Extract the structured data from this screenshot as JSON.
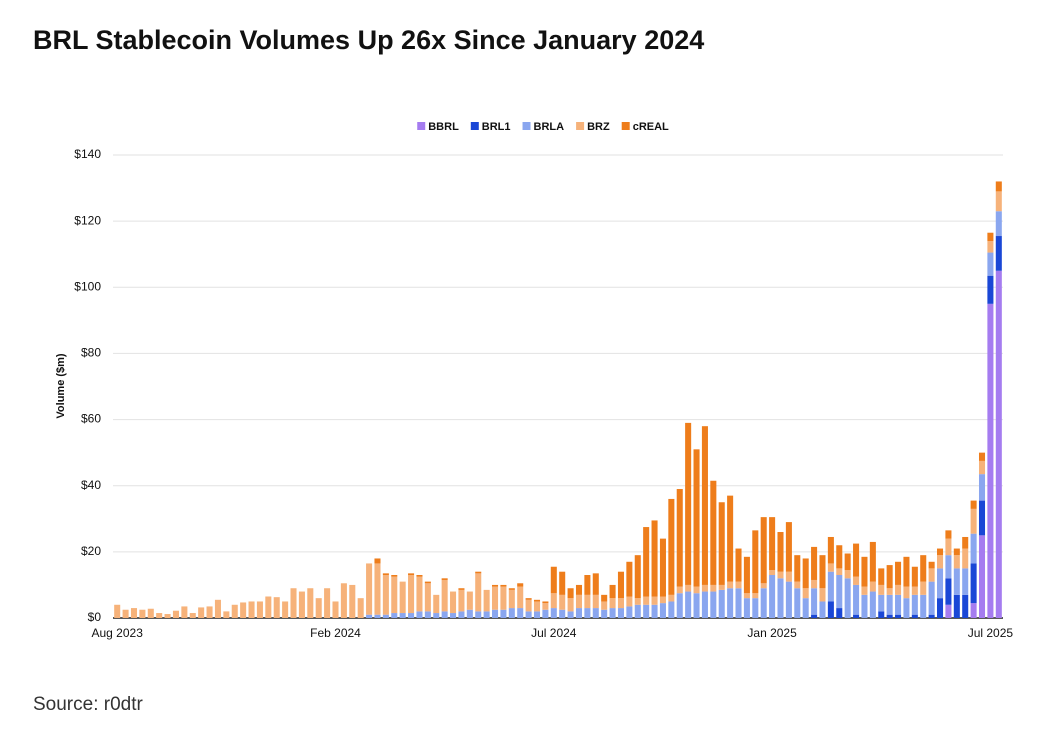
{
  "chart_data": {
    "type": "stacked-bar",
    "title": "BRL Stablecoin Volumes Up 26x Since January 2024",
    "y_label": "Volume ($m)",
    "source": "Source: r0dtr",
    "categories": [
      "Aug 2023",
      null,
      null,
      null,
      null,
      null,
      null,
      null,
      null,
      null,
      null,
      null,
      null,
      null,
      null,
      null,
      null,
      null,
      null,
      null,
      null,
      null,
      null,
      null,
      null,
      null,
      "Feb 2024",
      null,
      null,
      null,
      null,
      null,
      null,
      null,
      null,
      null,
      null,
      null,
      null,
      null,
      null,
      null,
      null,
      null,
      null,
      null,
      null,
      null,
      null,
      null,
      null,
      null,
      "Jul 2024",
      null,
      null,
      null,
      null,
      null,
      null,
      null,
      null,
      null,
      null,
      null,
      null,
      null,
      null,
      null,
      null,
      null,
      null,
      null,
      null,
      null,
      null,
      null,
      null,
      null,
      "Jan 2025",
      null,
      null,
      null,
      null,
      null,
      null,
      null,
      null,
      null,
      null,
      null,
      null,
      null,
      null,
      null,
      null,
      null,
      null,
      null,
      null,
      null,
      null,
      null,
      null,
      null,
      "Jul 2025",
      null
    ],
    "series": [
      {
        "name": "BBRL",
        "color": "#a57cf0",
        "values": [
          0,
          0,
          0,
          0,
          0,
          0,
          0,
          0,
          0,
          0,
          0,
          0,
          0,
          0,
          0,
          0,
          0,
          0,
          0,
          0,
          0,
          0,
          0,
          0,
          0,
          0,
          0,
          0,
          0,
          0,
          0,
          0,
          0,
          0,
          0,
          0,
          0,
          0,
          0,
          0,
          0,
          0,
          0,
          0,
          0,
          0,
          0,
          0,
          0,
          0,
          0,
          0,
          0,
          0,
          0,
          0,
          0,
          0,
          0,
          0,
          0,
          0,
          0,
          0,
          0,
          0,
          0,
          0,
          0,
          0,
          0,
          0,
          0,
          0,
          0,
          0,
          0,
          0,
          0,
          0,
          0,
          0,
          0,
          0,
          0,
          0,
          0,
          0,
          0,
          0,
          0,
          0,
          0,
          0,
          0,
          0,
          0,
          0,
          0,
          4,
          0,
          0,
          4.5,
          25,
          95,
          105
        ]
      },
      {
        "name": "BRL1",
        "color": "#1a47d6",
        "values": [
          0,
          0,
          0,
          0,
          0,
          0,
          0,
          0,
          0,
          0,
          0,
          0,
          0,
          0,
          0,
          0,
          0,
          0,
          0,
          0,
          0,
          0,
          0,
          0,
          0,
          0,
          0,
          0,
          0,
          0,
          0,
          0,
          0,
          0,
          0,
          0,
          0,
          0,
          0,
          0,
          0,
          0,
          0,
          0,
          0,
          0,
          0,
          0,
          0,
          0,
          0,
          0,
          0,
          0,
          0,
          0,
          0,
          0,
          0,
          0,
          0,
          0,
          0,
          0,
          0,
          0,
          0,
          0,
          0,
          0,
          0,
          0,
          0,
          0,
          0,
          0,
          0,
          0,
          0,
          0,
          0,
          0,
          0,
          1,
          0,
          5,
          3,
          0,
          1,
          0,
          0,
          2,
          1,
          1,
          0,
          1,
          0,
          1,
          6,
          8,
          7,
          7,
          12,
          10.5,
          8.5,
          10.5
        ]
      },
      {
        "name": "BRLA",
        "color": "#8aa6ef",
        "values": [
          0,
          0,
          0,
          0,
          0,
          0,
          0,
          0,
          0,
          0,
          0,
          0,
          0,
          0,
          0,
          0,
          0,
          0,
          0,
          0,
          0,
          0,
          0,
          0,
          0,
          0,
          0,
          0,
          0,
          0,
          1,
          1,
          1,
          1.5,
          1.5,
          1.5,
          2,
          2,
          1.5,
          2,
          1.5,
          2,
          2.5,
          2,
          2,
          2.5,
          2.5,
          3,
          3,
          2,
          2,
          2.5,
          3,
          2.5,
          2,
          3,
          3,
          3,
          2.5,
          3,
          3,
          3.5,
          4,
          4,
          4,
          4.5,
          5,
          7.5,
          8,
          7.5,
          8,
          8,
          8.5,
          9,
          9,
          6,
          6,
          9,
          13,
          12,
          11,
          9,
          6,
          8,
          5,
          9,
          10,
          12,
          9,
          7,
          8,
          5,
          6,
          6,
          6,
          6,
          7,
          10,
          9,
          7,
          8,
          8,
          9,
          8,
          7,
          7.5
        ]
      },
      {
        "name": "BRZ",
        "color": "#f6b27a",
        "values": [
          4,
          2.5,
          3,
          2.5,
          2.8,
          1.5,
          1.2,
          2.2,
          3.5,
          1.5,
          3.2,
          3.5,
          5.5,
          2,
          4,
          4.7,
          5,
          5,
          6.5,
          6.3,
          5,
          9,
          8,
          9,
          6,
          9,
          5,
          10.5,
          10,
          6,
          15.5,
          15.5,
          12,
          11,
          9.5,
          11.5,
          10.5,
          8.5,
          5.5,
          9.5,
          6.5,
          6.5,
          5.5,
          11.5,
          6.5,
          7,
          7,
          5.5,
          6.5,
          3.5,
          3,
          2,
          4.5,
          4.5,
          4,
          4,
          4,
          4,
          2.5,
          3,
          3,
          3,
          2,
          2.5,
          2.5,
          2,
          2,
          2,
          2,
          2,
          2,
          2,
          1.5,
          2,
          2,
          1.5,
          1.5,
          1.5,
          1.5,
          2,
          3,
          2,
          3,
          2.5,
          4,
          2.5,
          2,
          2.5,
          2.5,
          2.5,
          3,
          3,
          2,
          3,
          3.5,
          2.5,
          4,
          4,
          4,
          5,
          4,
          6,
          7.5,
          4,
          3.5,
          6
        ]
      },
      {
        "name": "cREAL",
        "color": "#ee7d1b",
        "values": [
          0,
          0,
          0,
          0,
          0,
          0,
          0,
          0,
          0,
          0,
          0,
          0,
          0,
          0,
          0,
          0,
          0,
          0,
          0,
          0,
          0,
          0,
          0,
          0,
          0,
          0,
          0,
          0,
          0,
          0,
          0,
          1.5,
          0.5,
          0.5,
          0,
          0.5,
          0.5,
          0.5,
          0,
          0.5,
          0,
          0.5,
          0,
          0.5,
          0,
          0.5,
          0.5,
          0.5,
          1,
          0.5,
          0.5,
          0.5,
          8,
          7,
          3,
          3,
          6,
          6.5,
          2,
          4,
          8,
          10.5,
          13,
          21,
          23,
          17.5,
          29,
          29.5,
          49,
          41.5,
          48,
          31.5,
          25,
          26,
          10,
          11,
          19,
          20,
          16,
          12,
          15,
          8,
          9,
          10,
          10,
          8,
          7,
          5,
          10,
          9,
          12,
          5,
          7,
          7,
          9,
          6,
          8,
          2,
          2,
          2.5,
          2,
          3.5,
          2.5,
          2.5,
          2.5,
          3
        ]
      }
    ],
    "ylim": [
      0,
      140
    ],
    "yticks": [
      {
        "value": 0,
        "label": "$0"
      },
      {
        "value": 20,
        "label": "$20"
      },
      {
        "value": 40,
        "label": "$40"
      },
      {
        "value": 60,
        "label": "$60"
      },
      {
        "value": 80,
        "label": "$80"
      },
      {
        "value": 100,
        "label": "$100"
      },
      {
        "value": 120,
        "label": "$120"
      },
      {
        "value": 140,
        "label": "$140"
      }
    ],
    "grid": true,
    "legend": "top"
  }
}
